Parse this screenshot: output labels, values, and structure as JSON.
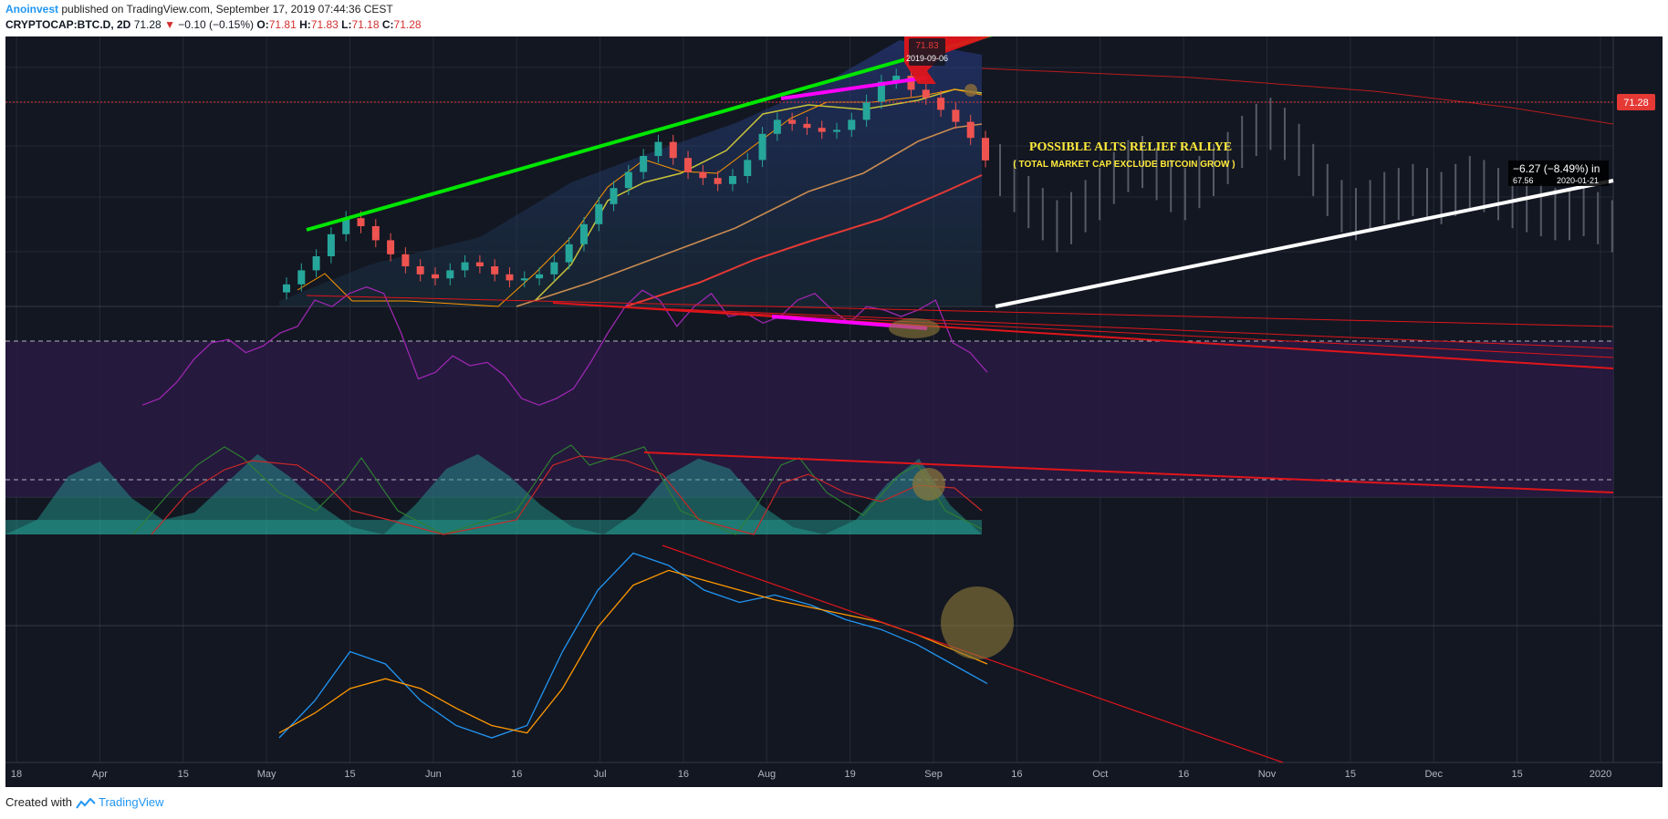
{
  "header": {
    "author": "Anoinvest",
    "published_text": "published on TradingView.com, September 17, 2019 07:44:36 CEST",
    "symbol": "CRYPTOCAP:BTC.D, 2D",
    "last": "71.28",
    "change": "−0.10 (−0.15%)",
    "ohlc": [
      {
        "k": "O:",
        "v": "71.81"
      },
      {
        "k": "H:",
        "v": "71.83"
      },
      {
        "k": "L:",
        "v": "71.18"
      },
      {
        "k": "C:",
        "v": "71.28"
      }
    ]
  },
  "footer": {
    "created_with": "Created with",
    "brand": "TradingView"
  },
  "colors": {
    "background": "#131722",
    "up": "#26a69a",
    "down": "#ef5350",
    "support_line": "#00e600",
    "divergence": "#ff00ff",
    "resistance": "#e0151b",
    "rsi": "#9c27b0",
    "price_label": "#e53935"
  },
  "chart_data": [
    {
      "type": "candlestick",
      "title": "CRYPTOCAP:BTC.D, 2D",
      "x_ticks": [
        "18",
        "Apr",
        "15",
        "May",
        "15",
        "Jun",
        "16",
        "Jul",
        "16",
        "Aug",
        "19",
        "Sep",
        "16",
        "Oct",
        "16",
        "Nov",
        "15",
        "Dec",
        "15",
        "2020"
      ],
      "last_price_label": "71.28",
      "close_series": [
        65.1,
        65.8,
        66.5,
        67.6,
        68.4,
        68.0,
        67.3,
        66.6,
        66.0,
        65.6,
        65.4,
        65.8,
        66.2,
        66.0,
        65.6,
        65.3,
        65.4,
        65.6,
        66.2,
        67.1,
        68.1,
        69.1,
        69.9,
        70.7,
        71.5,
        72.2,
        71.4,
        70.7,
        70.4,
        70.1,
        70.5,
        71.3,
        72.6,
        73.3,
        73.1,
        72.9,
        72.7,
        72.8,
        73.3,
        74.2,
        75.2,
        75.5,
        74.8,
        74.4,
        73.8,
        73.2,
        72.4,
        71.28
      ],
      "annotations": [
        {
          "text": "POSSIBLE ALTS RELIEF RALLYE",
          "color": "#ffeb3b"
        },
        {
          "text": "( TOTAL MARKET CAP EXCLUDE BITCOIN GROW )",
          "color": "#ffeb3b"
        },
        {
          "text": "71.83"
        },
        {
          "text": "2019-09-06"
        },
        {
          "text": "−6.27 (−8.49%) in"
        },
        {
          "text": "67.56"
        },
        {
          "text": "2020-01-21"
        }
      ],
      "projection": "grey bars-pattern continuation Sep 16 → 2020 (Nov peak then drift)"
    },
    {
      "type": "line",
      "indicator": "RSI",
      "values": [
        28,
        30,
        35,
        42,
        47,
        48,
        44,
        46,
        50,
        52,
        60,
        58,
        62,
        64,
        62,
        50,
        36,
        38,
        43,
        40,
        41,
        37,
        30,
        28,
        30,
        33,
        41,
        50,
        58,
        63,
        60,
        52,
        58,
        62,
        55,
        56,
        53,
        55,
        60,
        62,
        57,
        53,
        58,
        57,
        55,
        57,
        60,
        47,
        44,
        38
      ]
    },
    {
      "type": "area",
      "indicator": "Oscillator (area + 2 lines)",
      "values": [
        0,
        10,
        40,
        50,
        25,
        10,
        15,
        35,
        55,
        40,
        20,
        5,
        0,
        20,
        45,
        55,
        40,
        20,
        5,
        0,
        15,
        40,
        52,
        45,
        20,
        5,
        0,
        10,
        35,
        52,
        20,
        0
      ]
    },
    {
      "type": "line",
      "indicator": "Momentum (blue / orange)",
      "series": [
        {
          "values": [
            10,
            25,
            45,
            40,
            25,
            15,
            10,
            15,
            45,
            70,
            85,
            80,
            70,
            65,
            68,
            64,
            58,
            54,
            48,
            40,
            32
          ]
        },
        {
          "values": [
            12,
            20,
            30,
            34,
            30,
            22,
            15,
            12,
            30,
            55,
            72,
            78,
            74,
            70,
            66,
            63,
            60,
            57,
            52,
            46,
            40
          ]
        }
      ]
    }
  ]
}
